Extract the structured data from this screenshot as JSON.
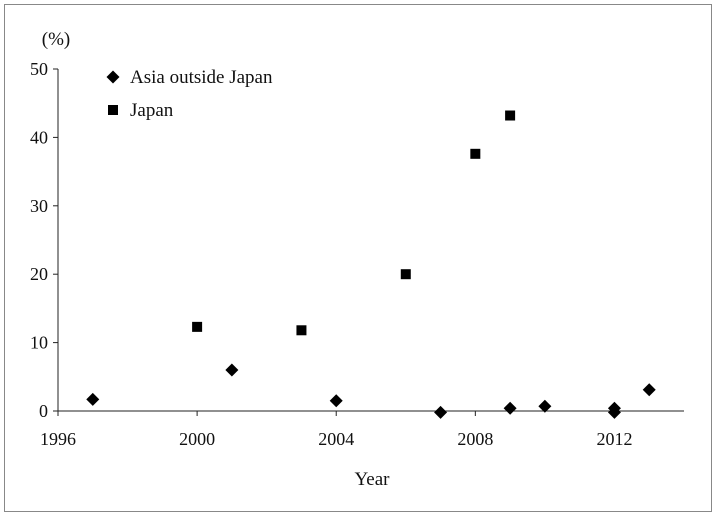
{
  "chart_data": {
    "type": "scatter",
    "title": "",
    "xlabel": "Year",
    "ylabel": "(%)",
    "xlim": [
      1996,
      2014
    ],
    "ylim": [
      0,
      50
    ],
    "xticks": [
      1996,
      2000,
      2004,
      2008,
      2012
    ],
    "yticks": [
      0,
      10,
      20,
      30,
      40,
      50
    ],
    "grid": false,
    "legend_position": "top-left",
    "series": [
      {
        "name": "Asia outside Japan",
        "marker": "diamond",
        "color": "#000000",
        "points": [
          {
            "x": 1997,
            "y": 1.7
          },
          {
            "x": 2001,
            "y": 6.0
          },
          {
            "x": 2004,
            "y": 1.5
          },
          {
            "x": 2007,
            "y": -0.2
          },
          {
            "x": 2009,
            "y": 0.4
          },
          {
            "x": 2010,
            "y": 0.7
          },
          {
            "x": 2012,
            "y": 0.4
          },
          {
            "x": 2012,
            "y": -0.2
          },
          {
            "x": 2013,
            "y": 3.1
          }
        ]
      },
      {
        "name": "Japan",
        "marker": "square",
        "color": "#000000",
        "points": [
          {
            "x": 2000,
            "y": 12.3
          },
          {
            "x": 2003,
            "y": 11.8
          },
          {
            "x": 2006,
            "y": 20.0
          },
          {
            "x": 2008,
            "y": 37.6
          },
          {
            "x": 2009,
            "y": 43.2
          }
        ]
      }
    ]
  }
}
